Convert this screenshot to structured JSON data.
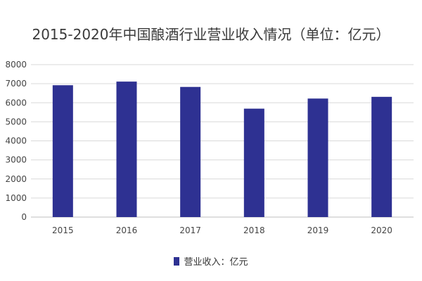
{
  "chart_data": {
    "type": "bar",
    "title": "2015-2020年中国酿酒行业营业收入情况（单位：亿元）",
    "categories": [
      "2015",
      "2016",
      "2017",
      "2018",
      "2019",
      "2020"
    ],
    "series": [
      {
        "name": "营业收入：亿元",
        "values": [
          6920,
          7110,
          6830,
          5690,
          6220,
          6310
        ],
        "color": "#2e3192"
      }
    ],
    "xlabel": "",
    "ylabel": "",
    "ylim": [
      0,
      8000
    ],
    "yticks": [
      0,
      1000,
      2000,
      3000,
      4000,
      5000,
      6000,
      7000,
      8000
    ],
    "grid": true,
    "legend_position": "bottom"
  }
}
